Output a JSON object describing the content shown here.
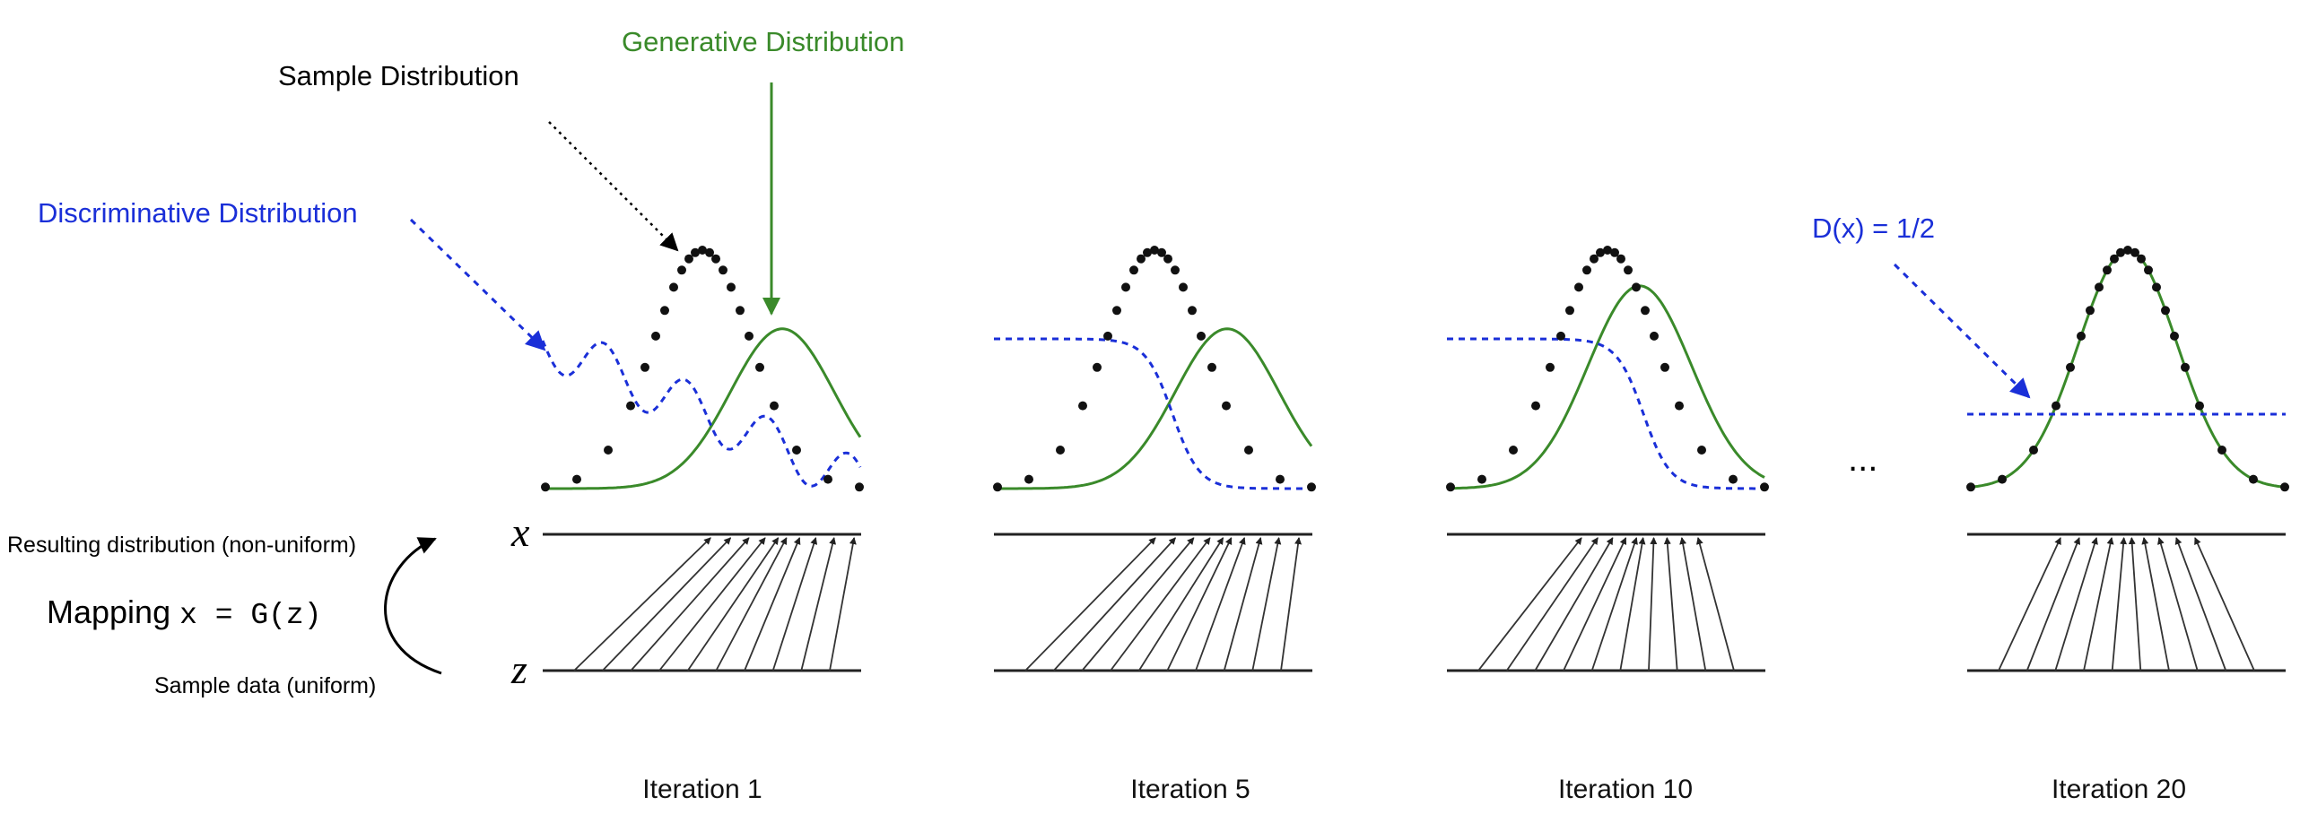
{
  "labels": {
    "sample_distribution": "Sample Distribution",
    "generative_distribution": "Generative Distribution",
    "discriminative_distribution": "Discriminative Distribution",
    "d_half": "D(x) = 1/2",
    "resulting_distribution": "Resulting distribution (non-uniform)",
    "mapping_prefix": "Mapping ",
    "mapping_formula": "x = G(z)",
    "sample_data": "Sample data (uniform)",
    "x_axis": "x",
    "z_axis": "z",
    "ellipsis": "..."
  },
  "iterations": [
    {
      "label": "Iteration 1",
      "generator_offset": 0.45,
      "generator_sigma": 0.8,
      "discriminator": "wavy"
    },
    {
      "label": "Iteration 5",
      "generator_offset": 0.45,
      "generator_sigma": 0.8,
      "discriminator": "sigmoid"
    },
    {
      "label": "Iteration 10",
      "generator_offset": 0.2,
      "generator_sigma": 0.7,
      "discriminator": "sigmoid"
    },
    {
      "label": "Iteration 20",
      "generator_offset": 0.0,
      "generator_sigma": 1.0,
      "discriminator": "flat"
    }
  ],
  "colors": {
    "sample": "#111111",
    "generative": "#3a8a2a",
    "discriminative": "#1a2fd8",
    "annotation_black": "#000000",
    "axis": "#222222"
  }
}
